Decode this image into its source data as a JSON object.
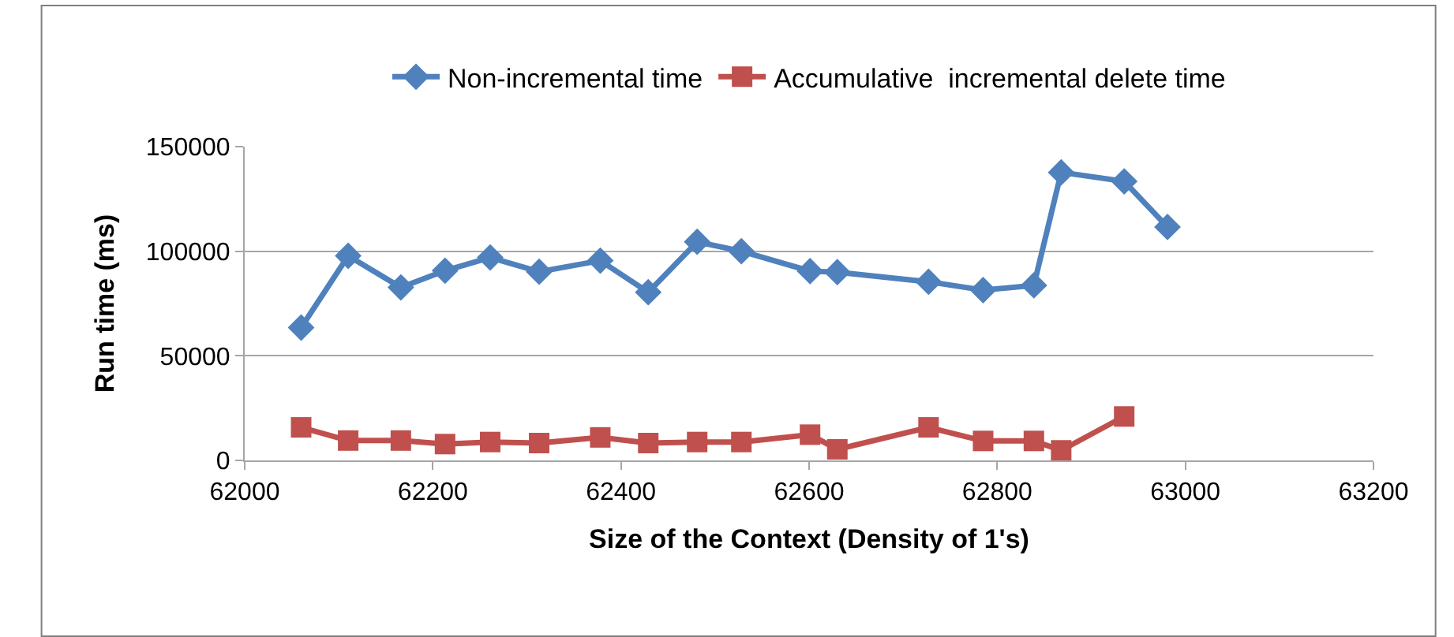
{
  "chart_data": {
    "type": "line",
    "xlabel": "Size of the Context (Density of 1's)",
    "ylabel": "Run time (ms)",
    "xlim": [
      62000,
      63200
    ],
    "xticks": [
      62000,
      62200,
      62400,
      62600,
      62800,
      63000,
      63200
    ],
    "ylim": [
      0,
      150000
    ],
    "yticks": [
      0,
      50000,
      100000,
      150000
    ],
    "grid": "y",
    "legend": "top",
    "series": [
      {
        "name": "Non-incremental time",
        "color": "#4f81bd",
        "marker": "diamond",
        "x": [
          62060,
          62110,
          62166,
          62213,
          62261,
          62313,
          62378,
          62429,
          62481,
          62528,
          62601,
          62630,
          62727,
          62785,
          62839,
          62868,
          62935,
          62981
        ],
        "values": [
          63500,
          97800,
          82700,
          90700,
          97000,
          90200,
          95500,
          80400,
          104500,
          100000,
          90500,
          90000,
          85400,
          81400,
          83700,
          137700,
          133400,
          111600
        ]
      },
      {
        "name": "Accumulative  incremental delete time",
        "color": "#c0504d",
        "marker": "square",
        "x": [
          62060,
          62110,
          62166,
          62213,
          62261,
          62313,
          62378,
          62429,
          62481,
          62528,
          62601,
          62630,
          62727,
          62785,
          62839,
          62868,
          62935
        ],
        "values": [
          15800,
          9500,
          9500,
          7800,
          8800,
          8300,
          11000,
          8300,
          8800,
          8800,
          12300,
          5300,
          15800,
          9300,
          9300,
          4800,
          21000
        ]
      }
    ]
  }
}
